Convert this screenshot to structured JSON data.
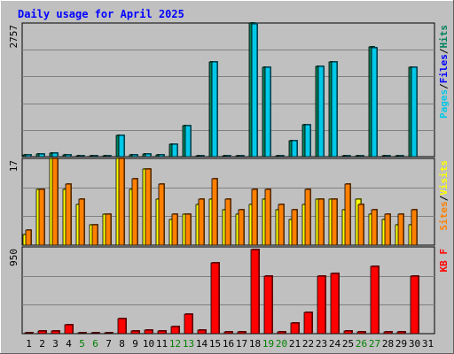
{
  "title": "Daily usage for April 2025",
  "days": [
    "1",
    "2",
    "3",
    "4",
    "5",
    "6",
    "7",
    "8",
    "9",
    "10",
    "11",
    "12",
    "13",
    "14",
    "15",
    "16",
    "17",
    "18",
    "19",
    "20",
    "21",
    "22",
    "23",
    "24",
    "25",
    "26",
    "27",
    "28",
    "29",
    "30",
    "31"
  ],
  "weekend_days": [
    5,
    6,
    12,
    13,
    19,
    20,
    26,
    27
  ],
  "colors": {
    "background": "#c0c0c0",
    "plot_background": "#c0c0c0",
    "grid": "#808080",
    "title": "#0000ff",
    "hits": "#00c8e8",
    "files": "#00805c",
    "pages": "#00c8e8",
    "visits": "#ffff00",
    "sites": "#ff8000",
    "kbytes": "#ff0000",
    "weekday_label": "#000000",
    "weekend_label": "#008000"
  },
  "chart_data": [
    {
      "type": "bar",
      "panel": "top",
      "scale_max_label": "2757",
      "right_labels": [
        {
          "text": "Pages",
          "color": "#00c8e8"
        },
        {
          "text": "/",
          "color": "#000000"
        },
        {
          "text": "Files",
          "color": "#0000ff"
        },
        {
          "text": "/",
          "color": "#000000"
        },
        {
          "text": "Hits",
          "color": "#00805c"
        }
      ],
      "ylim": [
        0,
        2757
      ],
      "series": [
        {
          "key": "files",
          "values": [
            30,
            50,
            70,
            40,
            20,
            20,
            20,
            440,
            40,
            60,
            40,
            250,
            640,
            20,
            1950,
            20,
            20,
            2757,
            1850,
            20,
            330,
            650,
            1860,
            1960,
            20,
            20,
            2260,
            20,
            20,
            1850,
            0
          ]
        },
        {
          "key": "hits",
          "values": [
            30,
            50,
            70,
            40,
            20,
            20,
            20,
            440,
            40,
            60,
            40,
            250,
            640,
            20,
            1950,
            20,
            20,
            2740,
            1850,
            20,
            330,
            650,
            1860,
            1960,
            20,
            20,
            2240,
            20,
            20,
            1850,
            0
          ]
        }
      ]
    },
    {
      "type": "bar",
      "panel": "middle",
      "scale_max_label": "17",
      "right_labels": [
        {
          "text": "Sites",
          "color": "#ff8000"
        },
        {
          "text": "/",
          "color": "#000000"
        },
        {
          "text": "Visits",
          "color": "#ffff00"
        }
      ],
      "ylim": [
        0,
        17
      ],
      "series": [
        {
          "key": "visits",
          "values": [
            2,
            11,
            17,
            11,
            8,
            4,
            6,
            17,
            11,
            15,
            9,
            5,
            6,
            8,
            9,
            7,
            6,
            8,
            9,
            7,
            5,
            8,
            9,
            9,
            7,
            9,
            6,
            5,
            4,
            4,
            0
          ]
        },
        {
          "key": "sites",
          "values": [
            3,
            11,
            17,
            12,
            9,
            4,
            6,
            17,
            13,
            15,
            12,
            6,
            6,
            9,
            13,
            9,
            7,
            11,
            11,
            8,
            7,
            11,
            9,
            9,
            12,
            8,
            7,
            6,
            6,
            7,
            0
          ]
        }
      ]
    },
    {
      "type": "bar",
      "panel": "bottom",
      "scale_max_label": "950",
      "right_labels": [
        {
          "text": "KB F",
          "color": "#ff0000"
        }
      ],
      "ylim": [
        0,
        950
      ],
      "series": [
        {
          "key": "kbytes",
          "values": [
            12,
            25,
            25,
            95,
            12,
            12,
            12,
            160,
            25,
            35,
            25,
            80,
            210,
            35,
            780,
            20,
            20,
            920,
            630,
            20,
            120,
            230,
            630,
            660,
            30,
            20,
            740,
            20,
            20,
            630,
            0
          ]
        }
      ]
    }
  ]
}
